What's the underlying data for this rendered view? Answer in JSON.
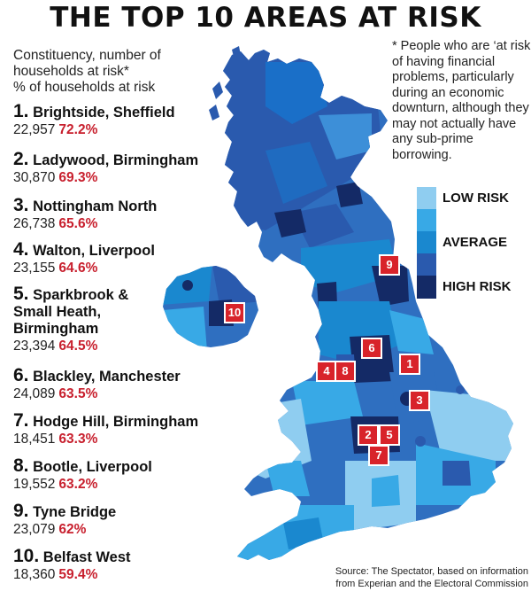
{
  "title": "THE TOP 10 AREAS AT RISK",
  "subtitle": [
    "Constituency, number of",
    "households at risk*",
    "% of households at risk"
  ],
  "footnote": "* People who are ‘at risk’ of having financial problems, particularly during an economic downturn, although they may not actually have any sub-prime borrowing.",
  "rankings": [
    {
      "rank": "1.",
      "name_lines": [
        "Brightside, Sheffield"
      ],
      "households": "22,957",
      "percent": "72.2%"
    },
    {
      "rank": "2.",
      "name_lines": [
        "Ladywood, Birmingham"
      ],
      "households": "30,870",
      "percent": "69.3%"
    },
    {
      "rank": "3.",
      "name_lines": [
        "Nottingham North"
      ],
      "households": "26,738",
      "percent": "65.6%"
    },
    {
      "rank": "4.",
      "name_lines": [
        "Walton, Liverpool"
      ],
      "households": "23,155",
      "percent": "64.6%"
    },
    {
      "rank": "5.",
      "name_lines": [
        "Sparkbrook &",
        "Small Heath,",
        "Birmingham"
      ],
      "households": "23,394",
      "percent": "64.5%"
    },
    {
      "rank": "6.",
      "name_lines": [
        "Blackley, Manchester"
      ],
      "households": "24,089",
      "percent": "63.5%"
    },
    {
      "rank": "7.",
      "name_lines": [
        "Hodge Hill, Birmingham"
      ],
      "households": "18,451",
      "percent": "63.3%"
    },
    {
      "rank": "8.",
      "name_lines": [
        "Bootle, Liverpool"
      ],
      "households": "19,552",
      "percent": "63.2%"
    },
    {
      "rank": "9.",
      "name_lines": [
        "Tyne Bridge"
      ],
      "households": "23,079",
      "percent": "62%"
    },
    {
      "rank": "10.",
      "name_lines": [
        "Belfast West"
      ],
      "households": "18,360",
      "percent": "59.4%"
    }
  ],
  "legend": [
    {
      "label": "LOW RISK",
      "color": "#8fcdf0"
    },
    {
      "label": "",
      "color": "#38a9e6"
    },
    {
      "label": "AVERAGE",
      "color": "#1a88cf"
    },
    {
      "label": "",
      "color": "#2a5aae"
    },
    {
      "label": "HIGH RISK",
      "color": "#142a66"
    }
  ],
  "map_markers": [
    "1",
    "2",
    "3",
    "4",
    "5",
    "6",
    "7",
    "8",
    "9",
    "10"
  ],
  "source_lines": [
    "Source: The Spectator, based on information",
    "from Experian and the Electoral Commission"
  ],
  "colors": {
    "accent_red": "#c8202e",
    "marker_red": "#d8232a"
  }
}
